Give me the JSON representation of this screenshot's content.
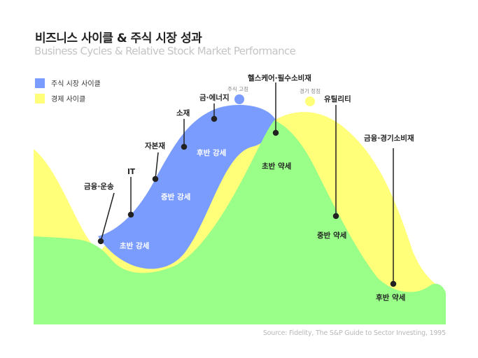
{
  "header": {
    "title": "비즈니스 사이클 & 주식 시장 성과",
    "subtitle": "Business Cycles & Relative Stock Market Performance"
  },
  "legend": [
    {
      "label": "주식 시장 사이클",
      "color": "#7b9cff"
    },
    {
      "label": "경제 사이클",
      "color": "#ffff7a"
    }
  ],
  "colors": {
    "stock_cycle": "#7b9cff",
    "economic_cycle": "#ffff7a",
    "ground": "#99ff88",
    "marker": "#222222",
    "phase_text_on_blue": "#ffffff",
    "phase_text_on_green": "#222222"
  },
  "peaks": {
    "stock_peak": "주식 고점",
    "economic_peak": "경기 정점"
  },
  "chart_data": {
    "type": "area",
    "title": "Business Cycles & Relative Stock Market Performance",
    "xlabel": "",
    "ylabel": "",
    "x": [
      0,
      1,
      2,
      3,
      4,
      5,
      6,
      7,
      8,
      9,
      10,
      11,
      12
    ],
    "series": [
      {
        "name": "주식 시장 사이클",
        "values": [
          3,
          2,
          3.5,
          6,
          8,
          9.5,
          9.8,
          9,
          7.5,
          5,
          3,
          2,
          1.5
        ]
      },
      {
        "name": "경제 사이클",
        "values": [
          9,
          3,
          1.5,
          1.5,
          2,
          4,
          6.5,
          9,
          9.8,
          9,
          7,
          4,
          2
        ]
      },
      {
        "name": "baseline",
        "values": [
          4,
          3,
          1,
          2,
          4,
          6,
          7,
          8.2,
          6,
          4,
          2,
          1,
          1.2
        ]
      }
    ],
    "sector_rotation": [
      {
        "sector": "금융·운송",
        "phase": "초반 강세",
        "cycle": "stock"
      },
      {
        "sector": "IT",
        "phase": "초반 강세",
        "cycle": "stock"
      },
      {
        "sector": "자본재",
        "phase": "중반 강세",
        "cycle": "stock"
      },
      {
        "sector": "소재",
        "phase": "중반 강세",
        "cycle": "stock"
      },
      {
        "sector": "금·에너지",
        "phase": "후반 강세",
        "cycle": "stock"
      },
      {
        "sector": "헬스케어·필수소비재",
        "phase": "초반 약세",
        "cycle": "economic"
      },
      {
        "sector": "유틸리티",
        "phase": "중반 약세",
        "cycle": "economic"
      },
      {
        "sector": "금융·경기소비재",
        "phase": "후반 약세",
        "cycle": "economic"
      }
    ],
    "phases": [
      "초반 강세",
      "중반 강세",
      "후반 강세",
      "초반 약세",
      "중반 약세",
      "후반 약세"
    ]
  },
  "source": "Source:  Fidelity, The S&P Guide to Sector Investing, 1995"
}
